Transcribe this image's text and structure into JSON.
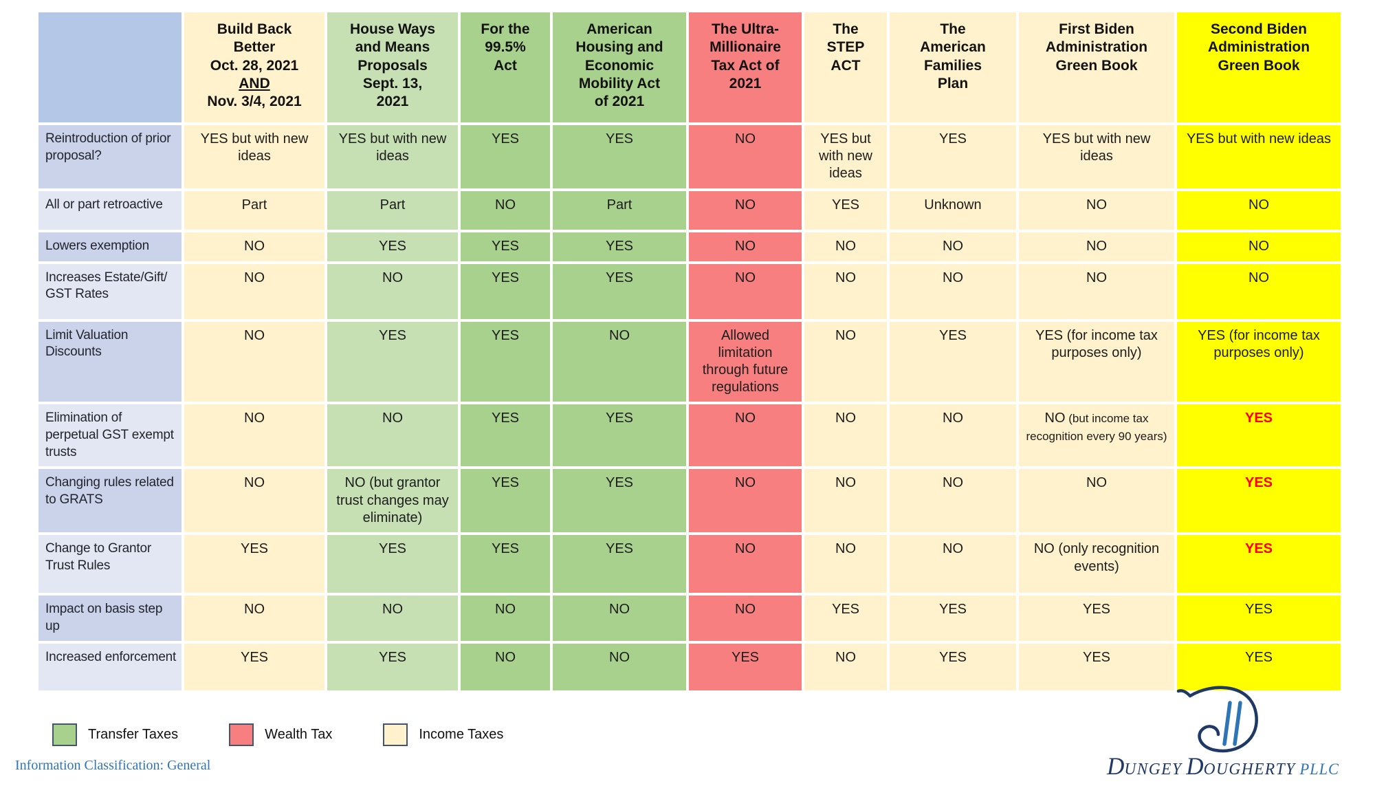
{
  "table": {
    "columns": [
      {
        "id": "row-label",
        "header_lines": [],
        "header_bg": "#B4C7E7",
        "cell_bg_alt": [
          "#CBD3EA",
          "#E3E7F4"
        ]
      },
      {
        "id": "build-back-better",
        "header_lines": [
          "Build Back",
          "Better",
          "Oct. 28, 2021",
          "AND",
          "Nov. 3/4, 2021"
        ],
        "underline_line": "AND",
        "header_bg": "#FFF2CC",
        "cell_bg": "#FFF2CC"
      },
      {
        "id": "house-ways-and-means",
        "header_lines": [
          "House Ways",
          "and Means",
          "Proposals",
          "Sept. 13,",
          "2021"
        ],
        "header_bg": "#C6E0B4",
        "cell_bg": "#C6E0B4"
      },
      {
        "id": "for-the-99-5-act",
        "header_lines": [
          "For the",
          "99.5%",
          "Act"
        ],
        "header_bg": "#A9D18E",
        "cell_bg": "#A9D18E"
      },
      {
        "id": "american-housing-economic-mobility",
        "header_lines": [
          "American",
          "Housing and",
          "Economic",
          "Mobility Act",
          "of 2021"
        ],
        "header_bg": "#A9D18E",
        "cell_bg": "#A9D18E"
      },
      {
        "id": "ultra-millionaire-tax-act",
        "header_lines": [
          "The Ultra-",
          "Millionaire",
          "Tax Act of",
          "2021"
        ],
        "header_bg": "#F87F7F",
        "cell_bg": "#F87F7F"
      },
      {
        "id": "step-act",
        "header_lines": [
          "The",
          "STEP",
          "ACT"
        ],
        "header_bg": "#FFF2CC",
        "cell_bg": "#FFF2CC"
      },
      {
        "id": "american-families-plan",
        "header_lines": [
          "The",
          "American",
          "Families",
          "Plan"
        ],
        "header_bg": "#FFF2CC",
        "cell_bg": "#FFF2CC"
      },
      {
        "id": "first-biden-green-book",
        "header_lines": [
          "First Biden",
          "Administration",
          "Green Book"
        ],
        "header_bg": "#FFF2CC",
        "cell_bg": "#FFF2CC"
      },
      {
        "id": "second-biden-green-book",
        "header_lines": [
          "Second Biden",
          "Administration",
          "Green Book"
        ],
        "header_bg": "#FFFF00",
        "cell_bg": "#FFFF00"
      }
    ],
    "rows": [
      {
        "label": "Reintroduction of prior proposal?",
        "cells": [
          "YES but with new ideas",
          "YES but with new ideas",
          "YES",
          "YES",
          "NO",
          "YES but with new ideas",
          "YES",
          "YES but with new ideas",
          "YES but with new ideas"
        ]
      },
      {
        "label": "All or part retroactive",
        "cells": [
          "Part",
          "Part",
          "NO",
          "Part",
          "NO",
          "YES",
          "Unknown",
          "NO",
          "NO"
        ]
      },
      {
        "label": "Lowers exemption",
        "cells": [
          "NO",
          "YES",
          "YES",
          "YES",
          "NO",
          "NO",
          "NO",
          "NO",
          "NO"
        ]
      },
      {
        "label": "Increases Estate/Gift/ GST Rates",
        "cells": [
          "NO",
          "NO",
          "YES",
          "YES",
          "NO",
          "NO",
          "NO",
          "NO",
          "NO"
        ]
      },
      {
        "label": "Limit Valuation Discounts",
        "cells": [
          "NO",
          "YES",
          "YES",
          "NO",
          "Allowed limitation through future regulations",
          "NO",
          "YES",
          "YES (for income tax purposes only)",
          "YES (for income tax purposes only)"
        ]
      },
      {
        "label": "Elimination of perpetual GST exempt trusts",
        "cells": [
          "NO",
          "NO",
          "YES",
          "YES",
          "NO",
          "NO",
          "NO",
          {
            "main": "NO",
            "note": "(but income tax recognition every 90 years)"
          },
          {
            "main": "YES",
            "emphasis": true
          }
        ]
      },
      {
        "label": "Changing rules related to GRATS",
        "cells": [
          "NO",
          "NO (but grantor trust changes may eliminate)",
          "YES",
          "YES",
          "NO",
          "NO",
          "NO",
          "NO",
          {
            "main": "YES",
            "emphasis": true
          }
        ]
      },
      {
        "label": "Change to Grantor Trust Rules",
        "cells": [
          "YES",
          "YES",
          "YES",
          "YES",
          "NO",
          "NO",
          "NO",
          "NO (only recognition events)",
          {
            "main": "YES",
            "emphasis": true
          }
        ]
      },
      {
        "label": "Impact on basis step up",
        "cells": [
          "NO",
          "NO",
          "NO",
          "NO",
          "NO",
          "YES",
          "YES",
          "YES",
          "YES"
        ]
      },
      {
        "label": "Increased enforcement",
        "cells": [
          "YES",
          "YES",
          "NO",
          "NO",
          "YES",
          "NO",
          "YES",
          "YES",
          "YES"
        ]
      }
    ]
  },
  "legend": {
    "swatch_border": "#44546A",
    "items": [
      {
        "label": "Transfer Taxes",
        "color": "#A9D18E"
      },
      {
        "label": "Wealth Tax",
        "color": "#F87F7F"
      },
      {
        "label": "Income Taxes",
        "color": "#FFF2CC"
      }
    ]
  },
  "footer": {
    "classification": "Information Classification: General"
  },
  "logo": {
    "d1": "D",
    "rest1": "UNGEY",
    "d2": "D",
    "rest2": "OUGHERTY",
    "suffix": "PLLC",
    "navy": "#1f3864",
    "light_blue": "#2e75b6"
  }
}
